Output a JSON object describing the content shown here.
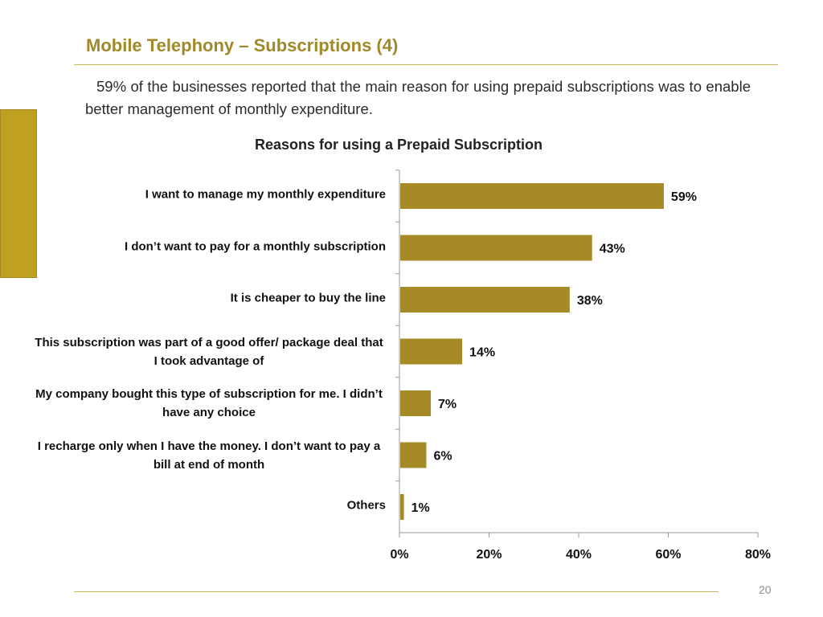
{
  "slide": {
    "title": "Mobile Telephony – Subscriptions  (4)",
    "intro": "59% of the businesses reported that the main reason for using prepaid subscriptions was to enable better management of monthly expenditure.",
    "page_number": "20"
  },
  "colors": {
    "accent": "#A08928",
    "bar": "#A68A25",
    "side_tab": "#C0A021",
    "rule": "#CDB75E"
  },
  "chart_data": {
    "type": "bar",
    "orientation": "horizontal",
    "title": "Reasons for using a Prepaid Subscription",
    "categories": [
      "I want to manage my monthly expenditure",
      "I don’t want to pay for a monthly subscription",
      "It is cheaper to buy the line",
      "This subscription was part of a good offer/ package deal that I took advantage of",
      "My company bought this type of subscription for me. I didn’t have any choice",
      "I recharge only when I have the money. I don’t want to pay a bill at  end of month",
      "Others"
    ],
    "values": [
      59,
      43,
      38,
      14,
      7,
      6,
      1
    ],
    "data_labels": [
      "59%",
      "43%",
      "38%",
      "14%",
      "7%",
      "6%",
      "1%"
    ],
    "xlim": [
      0,
      80
    ],
    "xticks": [
      0,
      20,
      40,
      60,
      80
    ],
    "xtick_labels": [
      "0%",
      "20%",
      "40%",
      "60%",
      "80%"
    ],
    "grid": false,
    "legend": "none"
  }
}
